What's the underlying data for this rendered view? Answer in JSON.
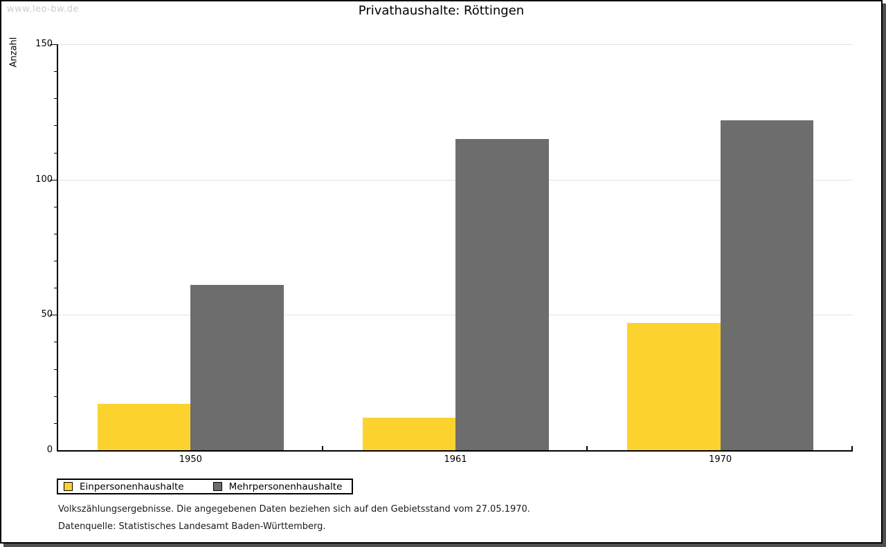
{
  "watermark": "www.leo-bw.de",
  "chart_data": {
    "type": "bar",
    "title": "Privathaushalte: Röttingen",
    "categories": [
      "1950",
      "1961",
      "1970"
    ],
    "series": [
      {
        "name": "Einpersonenhaushalte",
        "color": "#fcd32e",
        "values": [
          17,
          12,
          47
        ]
      },
      {
        "name": "Mehrpersonenhaushalte",
        "color": "#6d6d6d",
        "values": [
          61,
          115,
          122
        ]
      }
    ],
    "xlabel": "",
    "ylabel": "Anzahl",
    "ylim": [
      0,
      150
    ],
    "yticks_major": [
      0,
      50,
      100,
      150
    ],
    "ytick_minor_step": 10,
    "grid": "horizontal-at-major-ticks",
    "gridline_color": "#e3e3e3",
    "legend_position": "bottom-left",
    "bar_border": "none"
  },
  "footer": {
    "line1": "Volkszählungsergebnisse. Die angegebenen Daten beziehen sich auf den Gebietsstand vom 27.05.1970.",
    "line2": "Datenquelle: Statistisches Landesamt Baden-Württemberg."
  }
}
